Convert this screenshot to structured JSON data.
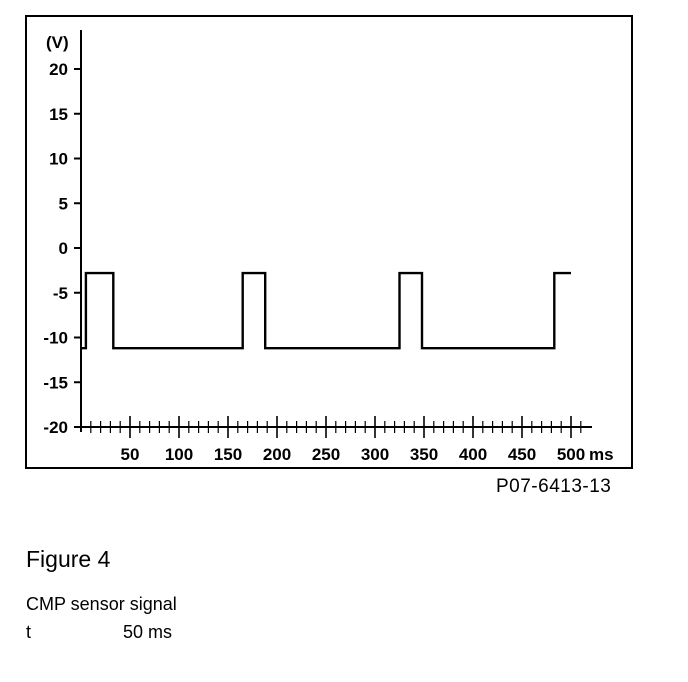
{
  "chart_data": {
    "type": "line",
    "y_unit_label": "(V)",
    "x_unit_label": "ms",
    "xlim": [
      0,
      510
    ],
    "ylim": [
      -20,
      23
    ],
    "y_ticks": [
      20,
      15,
      10,
      5,
      0,
      -5,
      -10,
      -15,
      -20
    ],
    "x_ticks": [
      50,
      100,
      150,
      200,
      250,
      300,
      350,
      400,
      450,
      500
    ],
    "x_minor_step": 10,
    "series": [
      {
        "x": [
          0,
          5,
          5,
          33,
          33,
          165,
          165,
          188,
          188,
          325,
          325,
          348,
          348,
          483,
          483,
          500
        ],
        "y": [
          -11.2,
          -11.2,
          -2.8,
          -2.8,
          -11.2,
          -11.2,
          -2.8,
          -2.8,
          -11.2,
          -11.2,
          -2.8,
          -2.8,
          -11.2,
          -11.2,
          -2.8,
          -2.8
        ]
      }
    ],
    "grid": false,
    "color": "#000000"
  },
  "figure": {
    "reference": "P07-6413-13",
    "title": "Figure 4",
    "caption": "CMP sensor signal",
    "param_symbol": "t",
    "param_value": "50 ms"
  }
}
